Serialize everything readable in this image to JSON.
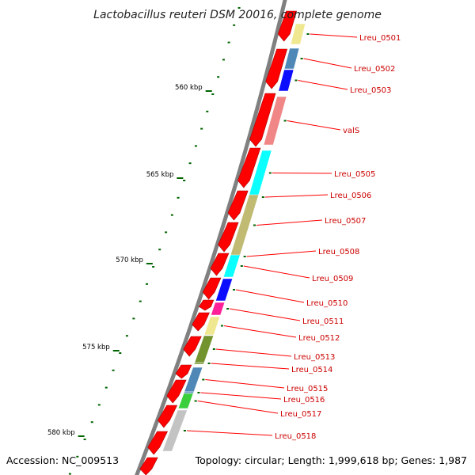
{
  "title": "Lactobacillus reuteri DSM 20016, complete genome",
  "footer": {
    "accession": "Accession: NC_009513",
    "summary": "Topology: circular; Length: 1,999,618 bp; Genes: 1,987"
  },
  "ruler": {
    "unit": "kbp",
    "labels": [
      "560 kbp",
      "565 kbp",
      "570 kbp",
      "575 kbp",
      "580 kbp"
    ]
  },
  "genes": [
    {
      "name": "Lreu_0501",
      "color": "#f0e68c"
    },
    {
      "name": "Lreu_0502",
      "color": "#4682b4"
    },
    {
      "name": "Lreu_0503",
      "color": "#0000ff"
    },
    {
      "name": "valS",
      "color": "#f08080"
    },
    {
      "name": "Lreu_0505",
      "color": "#00ffff"
    },
    {
      "name": "Lreu_0506",
      "color": "#00ffff"
    },
    {
      "name": "Lreu_0507",
      "color": "#bdb76b"
    },
    {
      "name": "Lreu_0508",
      "color": "#00ffff"
    },
    {
      "name": "Lreu_0509",
      "color": "#00ffff"
    },
    {
      "name": "Lreu_0510",
      "color": "#0000ff"
    },
    {
      "name": "Lreu_0511",
      "color": "#ff1493"
    },
    {
      "name": "Lreu_0512",
      "color": "#f0e68c"
    },
    {
      "name": "Lreu_0513",
      "color": "#6b8e23"
    },
    {
      "name": "Lreu_0514",
      "color": "#6b8e23"
    },
    {
      "name": "Lreu_0515",
      "color": "#4682b4"
    },
    {
      "name": "Lreu_0516",
      "color": "#4682b4"
    },
    {
      "name": "Lreu_0517",
      "color": "#32cd32"
    },
    {
      "name": "Lreu_0518",
      "color": "#c0c0c0"
    }
  ],
  "colors": {
    "arrow": "#ff0000",
    "backbone": "#808080",
    "label_line": "#ff0000",
    "tick": "#006400"
  }
}
